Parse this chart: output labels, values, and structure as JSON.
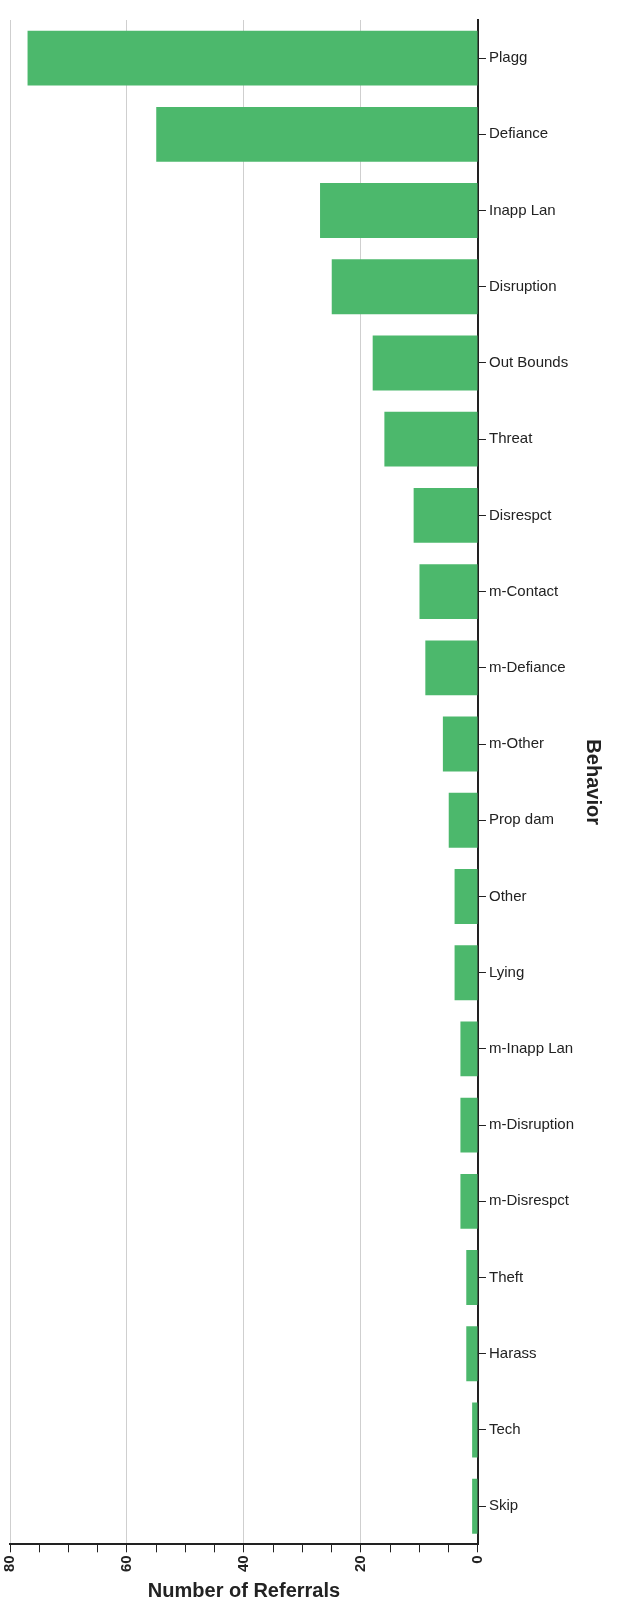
{
  "chart_data": {
    "type": "bar",
    "orientation": "horizontal",
    "xlabel": "Number of Referrals",
    "ylabel": "Behavior",
    "categories": [
      "Plagg",
      "Defiance",
      "Inapp Lan",
      "Disruption",
      "Out Bounds",
      "Threat",
      "Disrespct",
      "m-Contact",
      "m-Defiance",
      "m-Other",
      "Prop dam",
      "Other",
      "Lying",
      "m-Inapp Lan",
      "m-Disruption",
      "m-Disrespct",
      "Theft",
      "Harass",
      "Tech",
      "Skip"
    ],
    "values": [
      77,
      55,
      27,
      25,
      18,
      16,
      11,
      10,
      9,
      6,
      5,
      4,
      4,
      3,
      3,
      3,
      2,
      2,
      1,
      1
    ],
    "color": "#4cb86c",
    "xlim": [
      80,
      0
    ],
    "xticks": [
      80,
      {
        "value": 75,
        "label": null
      },
      {
        "value": 70,
        "label": null
      },
      {
        "value": 65,
        "label": null
      },
      60,
      {
        "value": 55,
        "label": null
      },
      {
        "value": 50,
        "label": null
      },
      {
        "value": 45,
        "label": null
      },
      40,
      {
        "value": 35,
        "label": null
      },
      {
        "value": 30,
        "label": null
      },
      {
        "value": 25,
        "label": null
      },
      20,
      {
        "value": 15,
        "label": null
      },
      {
        "value": 10,
        "label": null
      },
      {
        "value": 5,
        "label": null
      },
      0
    ],
    "grid": "x",
    "legend": false
  }
}
